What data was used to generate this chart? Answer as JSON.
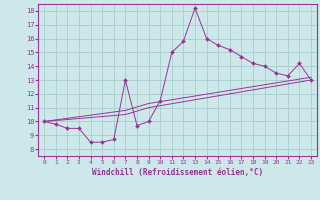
{
  "xlabel": "Windchill (Refroidissement éolien,°C)",
  "bg_color": "#cce8e8",
  "grid_color": "#aacccc",
  "line_color": "#993399",
  "xlim": [
    -0.5,
    23.5
  ],
  "ylim": [
    7.5,
    18.5
  ],
  "xticks": [
    0,
    1,
    2,
    3,
    4,
    5,
    6,
    7,
    8,
    9,
    10,
    11,
    12,
    13,
    14,
    15,
    16,
    17,
    18,
    19,
    20,
    21,
    22,
    23
  ],
  "yticks": [
    8,
    9,
    10,
    11,
    12,
    13,
    14,
    15,
    16,
    17,
    18
  ],
  "series1_x": [
    0,
    1,
    2,
    3,
    4,
    5,
    6,
    7,
    8,
    9,
    10,
    11,
    12,
    13,
    14,
    15,
    16,
    17,
    18,
    19,
    20,
    21,
    22,
    23
  ],
  "series1_y": [
    10.0,
    9.8,
    9.5,
    9.5,
    8.5,
    8.5,
    8.7,
    13.0,
    9.7,
    10.0,
    11.5,
    15.0,
    15.8,
    18.2,
    16.0,
    15.5,
    15.2,
    14.7,
    14.2,
    14.0,
    13.5,
    13.3,
    14.2,
    13.0
  ],
  "series2_x": [
    0,
    7,
    9,
    23
  ],
  "series2_y": [
    10.0,
    10.5,
    11.0,
    13.0
  ],
  "series3_x": [
    0,
    7,
    9,
    23
  ],
  "series3_y": [
    10.0,
    10.8,
    11.3,
    13.2
  ]
}
